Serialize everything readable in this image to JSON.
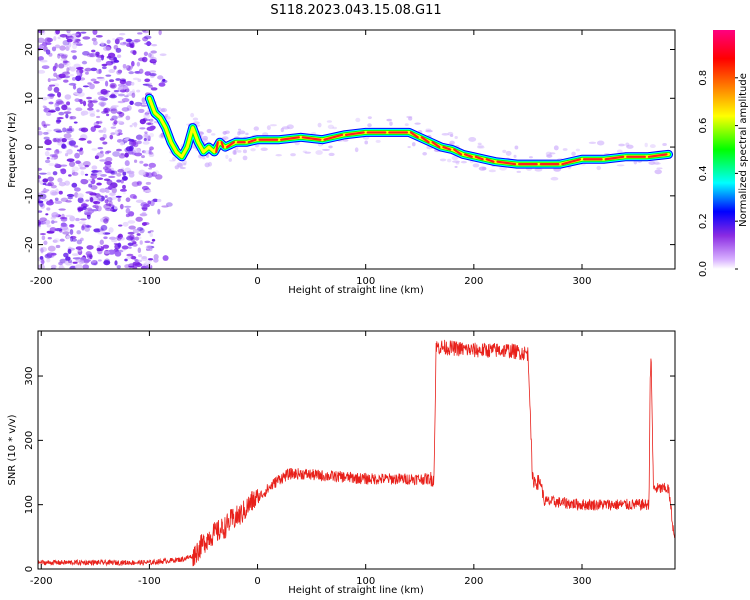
{
  "title": "S118.2023.043.15.08.G11",
  "chart_data": [
    {
      "type": "heatmap",
      "title": "S118.2023.043.15.08.G11",
      "xlabel": "Height of straight line (km)",
      "ylabel": "Frequency (Hz)",
      "xlim": [
        -203,
        386
      ],
      "ylim": [
        -25,
        24
      ],
      "xticks": [
        -200,
        -100,
        0,
        100,
        200,
        300
      ],
      "yticks": [
        -20,
        -10,
        0,
        10,
        20
      ],
      "colorbar": {
        "label": "Normalized spectral amplitude",
        "range": [
          0,
          1
        ],
        "ticks": [
          0.0,
          0.2,
          0.4,
          0.6,
          0.8
        ],
        "colormap": [
          "#ffffff",
          "#8a2be2",
          "#0000ff",
          "#00ffff",
          "#00ff00",
          "#ffff00",
          "#ff8000",
          "#ff0000",
          "#ff00ff"
        ]
      },
      "noise_region": {
        "x_range": [
          -203,
          -95
        ],
        "freq_range": [
          -25,
          24
        ]
      },
      "ridge_x": [
        -100,
        -95,
        -90,
        -85,
        -80,
        -75,
        -70,
        -65,
        -60,
        -55,
        -50,
        -45,
        -40,
        -35,
        -30,
        -20,
        -10,
        0,
        20,
        40,
        60,
        80,
        100,
        120,
        140,
        150,
        160,
        170,
        180,
        190,
        200,
        210,
        220,
        240,
        260,
        280,
        300,
        320,
        340,
        360,
        380
      ],
      "ridge_y": [
        10,
        7,
        6,
        4,
        1,
        -1,
        -2,
        0,
        4,
        1,
        -1,
        0,
        -1,
        1,
        0,
        1,
        1,
        1.5,
        1.5,
        2,
        1.5,
        2.5,
        3,
        3,
        3,
        2,
        1,
        0,
        -0.5,
        -1.5,
        -2,
        -2.5,
        -3,
        -3.5,
        -3.5,
        -3.5,
        -2.5,
        -2.5,
        -2,
        -2,
        -1.5
      ]
    },
    {
      "type": "line",
      "title": "",
      "xlabel": "Height of straight line (km)",
      "ylabel": "SNR (10 * v/v)",
      "xlim": [
        -203,
        386
      ],
      "ylim": [
        0,
        370
      ],
      "xticks": [
        -200,
        -100,
        0,
        100,
        200,
        300
      ],
      "yticks": [
        0,
        100,
        200,
        300
      ],
      "series": [
        {
          "color": "#e8201a",
          "x": [
            -203,
            -150,
            -100,
            -70,
            -60,
            -55,
            -50,
            -45,
            -40,
            -35,
            -30,
            -25,
            -20,
            -15,
            -10,
            -5,
            0,
            10,
            20,
            30,
            40,
            60,
            80,
            100,
            130,
            150,
            163,
            164,
            165,
            170,
            200,
            230,
            250,
            252,
            254,
            258,
            262,
            265,
            270,
            300,
            330,
            358,
            362,
            363,
            364,
            366,
            380,
            386
          ],
          "y": [
            10,
            10,
            10,
            15,
            20,
            30,
            40,
            50,
            55,
            60,
            65,
            75,
            80,
            85,
            95,
            105,
            110,
            125,
            140,
            148,
            148,
            145,
            143,
            140,
            140,
            140,
            140,
            220,
            345,
            345,
            340,
            340,
            335,
            260,
            140,
            135,
            135,
            105,
            105,
            100,
            100,
            100,
            100,
            300,
            325,
            125,
            125,
            40
          ]
        }
      ]
    }
  ]
}
